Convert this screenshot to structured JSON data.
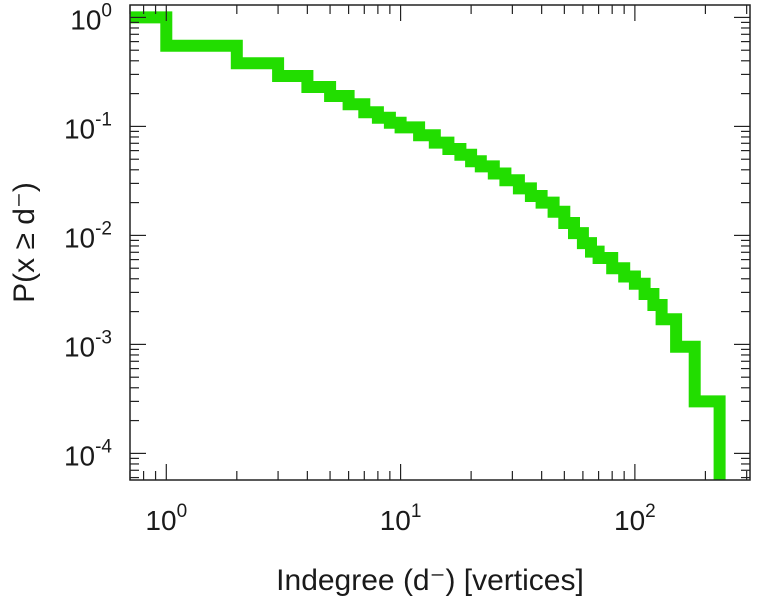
{
  "chart_data": {
    "type": "line",
    "step": true,
    "log_x": true,
    "log_y": true,
    "xlabel": "Indegree (d⁻) [vertices]",
    "ylabel": "P(x ≥ d⁻)",
    "xlim": [
      0.7,
      310
    ],
    "ylim": [
      5.7e-05,
      1.3
    ],
    "x_ticks": [
      {
        "value": 1,
        "base": "10",
        "exp": "0"
      },
      {
        "value": 10,
        "base": "10",
        "exp": "1"
      },
      {
        "value": 100,
        "base": "10",
        "exp": "2"
      }
    ],
    "y_ticks": [
      {
        "value": 1,
        "base": "10",
        "exp": "0"
      },
      {
        "value": 0.1,
        "base": "10",
        "exp": "-1"
      },
      {
        "value": 0.01,
        "base": "10",
        "exp": "-2"
      },
      {
        "value": 0.001,
        "base": "10",
        "exp": "-3"
      },
      {
        "value": 0.0001,
        "base": "10",
        "exp": "-4"
      }
    ],
    "grid": false,
    "series": [
      {
        "color": "#22dd00",
        "x": [
          0.7,
          1,
          2,
          3,
          4,
          5,
          6,
          7,
          8,
          9,
          10,
          12,
          14,
          16,
          18,
          20,
          22,
          25,
          28,
          32,
          36,
          40,
          45,
          50,
          55,
          60,
          65,
          70,
          80,
          90,
          100,
          110,
          120,
          130,
          150,
          180,
          230
        ],
        "y": [
          1.0,
          0.55,
          0.38,
          0.29,
          0.23,
          0.19,
          0.16,
          0.135,
          0.12,
          0.108,
          0.098,
          0.083,
          0.071,
          0.062,
          0.055,
          0.048,
          0.043,
          0.037,
          0.032,
          0.027,
          0.023,
          0.02,
          0.0165,
          0.013,
          0.0105,
          0.0085,
          0.0071,
          0.0062,
          0.005,
          0.0042,
          0.0036,
          0.0029,
          0.0023,
          0.0017,
          0.00095,
          0.0003,
          6e-05
        ]
      }
    ]
  }
}
